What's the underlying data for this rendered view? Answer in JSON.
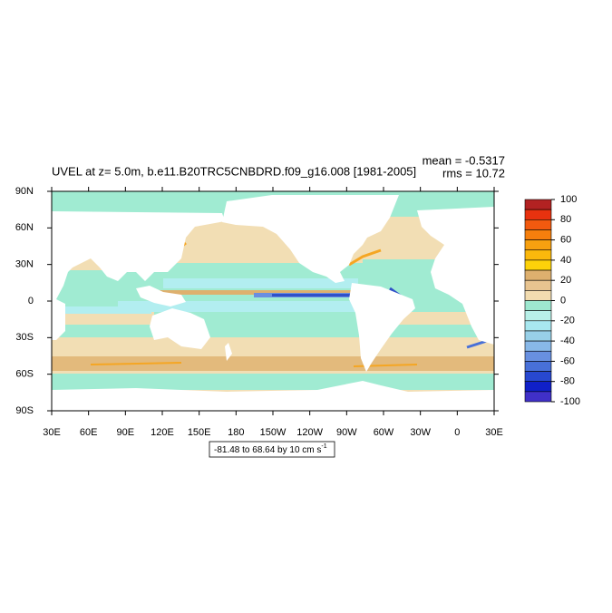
{
  "chart_data": {
    "type": "map",
    "title": "UVEL at z=   5.0m, b.e11.B20TRC5CNBDRD.f09_g16.008 [1981-2005]",
    "mean_label": "mean = -0.5317",
    "rms_label": "rms = 10.72",
    "xlim": [
      30,
      390
    ],
    "ylim": [
      -90,
      90
    ],
    "xticks": [
      {
        "value": 30,
        "label": "30E"
      },
      {
        "value": 60,
        "label": "60E"
      },
      {
        "value": 90,
        "label": "90E"
      },
      {
        "value": 120,
        "label": "120E"
      },
      {
        "value": 150,
        "label": "150E"
      },
      180,
      {
        "value": 210,
        "label": "150W"
      },
      {
        "value": 240,
        "label": "120W"
      },
      {
        "value": 270,
        "label": "90W"
      },
      {
        "value": 300,
        "label": "60W"
      },
      {
        "value": 330,
        "label": "30W"
      },
      {
        "value": 360,
        "label": "0"
      },
      {
        "value": 390,
        "label": "30E"
      }
    ],
    "yticks": [
      {
        "value": 90,
        "label": "90N"
      },
      {
        "value": 60,
        "label": "60N"
      },
      {
        "value": 30,
        "label": "30N"
      },
      0,
      {
        "value": -30,
        "label": "30S"
      },
      {
        "value": -60,
        "label": "60S"
      },
      {
        "value": -90,
        "label": "90S"
      }
    ],
    "info_label": {
      "text": "-81.48 to 68.64 by 10 cm s",
      "superscript": "-1"
    },
    "colorbar": {
      "bounds": [
        100,
        90,
        80,
        70,
        60,
        50,
        40,
        30,
        20,
        10,
        0,
        -10,
        -20,
        -30,
        -40,
        -50,
        -60,
        -70,
        -80,
        -90,
        -100
      ],
      "colors": [
        "#b22222",
        "#e8320f",
        "#f25a0f",
        "#f57f0d",
        "#f7a010",
        "#fbb80c",
        "#fdd20a",
        "#deb06e",
        "#e8c490",
        "#f2dcb0",
        "#9ee8d0",
        "#b8f0e8",
        "#a8e8f0",
        "#98d0e8",
        "#88b8e8",
        "#6890e0",
        "#4870d8",
        "#2848d0",
        "#1020c8",
        "#4030c8"
      ],
      "ticks": [
        100,
        80,
        60,
        40,
        20,
        0,
        -20,
        -40,
        -60,
        -80,
        -100
      ]
    }
  }
}
